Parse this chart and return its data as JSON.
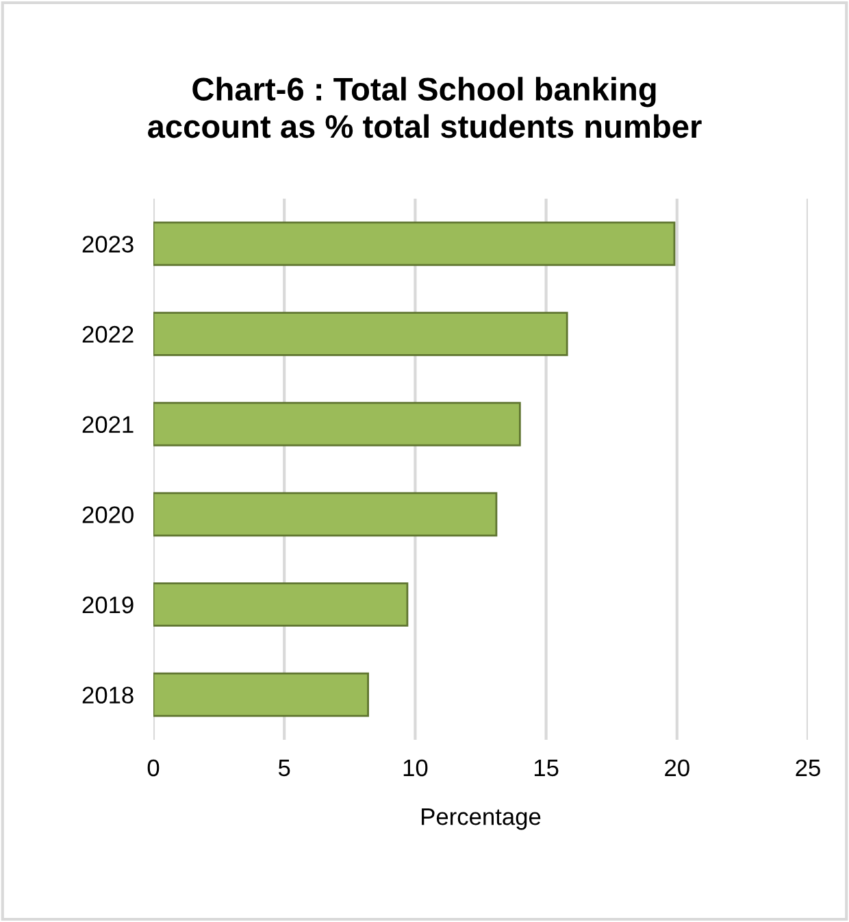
{
  "chart_data": {
    "type": "bar",
    "orientation": "horizontal",
    "title": "Chart-6 : Total School banking\naccount as % total students number",
    "xlabel": "Percentage",
    "categories": [
      "2023",
      "2022",
      "2021",
      "2020",
      "2019",
      "2018"
    ],
    "values": [
      19.9,
      15.8,
      14.0,
      13.1,
      9.7,
      8.2
    ],
    "color": "#9bbb59",
    "xlim": [
      0,
      25
    ],
    "xticks": [
      0,
      5,
      10,
      15,
      20,
      25
    ],
    "grid": "x"
  }
}
